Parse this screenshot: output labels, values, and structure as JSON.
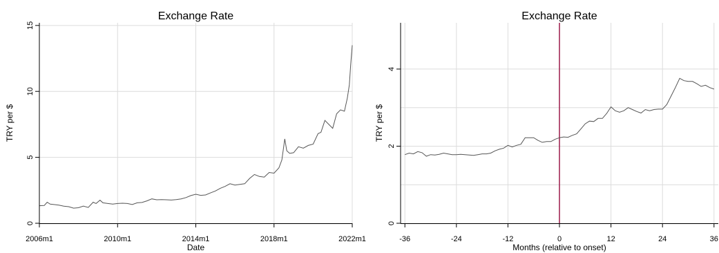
{
  "chart_data": [
    {
      "type": "line",
      "title": "Exchange Rate",
      "xlabel": "Date",
      "ylabel": "TRY per $",
      "xlim": [
        2006.0,
        2022.0
      ],
      "ylim": [
        0,
        15.2
      ],
      "x_ticks": [
        2006,
        2010,
        2014,
        2018,
        2022
      ],
      "x_tick_labels": [
        "2006m1",
        "2010m1",
        "2014m1",
        "2018m1",
        "2022m1"
      ],
      "y_ticks": [
        0,
        5,
        10,
        15
      ],
      "y_tick_labels": [
        "0",
        "5",
        "10",
        "15"
      ],
      "grid": true,
      "line_color": "#555555",
      "series": [
        {
          "x": [
            2006.0,
            2006.25,
            2006.4,
            2006.55,
            2006.75,
            2007.0,
            2007.25,
            2007.5,
            2007.75,
            2008.0,
            2008.25,
            2008.5,
            2008.75,
            2008.9,
            2009.1,
            2009.25,
            2009.5,
            2009.75,
            2010.0,
            2010.25,
            2010.5,
            2010.75,
            2011.0,
            2011.25,
            2011.5,
            2011.75,
            2012.0,
            2012.25,
            2012.5,
            2012.75,
            2013.0,
            2013.25,
            2013.5,
            2013.75,
            2014.0,
            2014.25,
            2014.5,
            2014.75,
            2015.0,
            2015.25,
            2015.5,
            2015.75,
            2016.0,
            2016.25,
            2016.5,
            2016.75,
            2017.0,
            2017.25,
            2017.5,
            2017.75,
            2018.0,
            2018.25,
            2018.4,
            2018.55,
            2018.65,
            2018.8,
            2019.0,
            2019.25,
            2019.5,
            2019.75,
            2020.0,
            2020.25,
            2020.4,
            2020.6,
            2020.8,
            2021.0,
            2021.2,
            2021.4,
            2021.6,
            2021.75,
            2021.85,
            2021.92,
            2022.0
          ],
          "y": [
            1.33,
            1.35,
            1.6,
            1.45,
            1.42,
            1.38,
            1.3,
            1.26,
            1.15,
            1.18,
            1.3,
            1.2,
            1.6,
            1.5,
            1.75,
            1.55,
            1.5,
            1.45,
            1.5,
            1.52,
            1.5,
            1.42,
            1.55,
            1.58,
            1.7,
            1.85,
            1.78,
            1.8,
            1.78,
            1.76,
            1.8,
            1.85,
            1.95,
            2.1,
            2.2,
            2.12,
            2.15,
            2.3,
            2.45,
            2.65,
            2.8,
            3.0,
            2.9,
            2.95,
            3.0,
            3.4,
            3.7,
            3.55,
            3.5,
            3.85,
            3.8,
            4.2,
            4.8,
            6.4,
            5.5,
            5.3,
            5.35,
            5.8,
            5.7,
            5.9,
            6.0,
            6.8,
            6.9,
            7.8,
            7.5,
            7.2,
            8.3,
            8.6,
            8.5,
            9.5,
            10.5,
            12.0,
            13.5
          ]
        }
      ]
    },
    {
      "type": "line",
      "title": "Exchange Rate",
      "xlabel": "Months (relative to onset)",
      "ylabel": "TRY per $",
      "xlim": [
        -37,
        37
      ],
      "ylim": [
        0,
        5.2
      ],
      "x_ticks": [
        -36,
        -24,
        -12,
        0,
        12,
        24,
        36
      ],
      "x_tick_labels": [
        "-36",
        "-24",
        "-12",
        "0",
        "12",
        "24",
        "36"
      ],
      "y_ticks": [
        0,
        2,
        4
      ],
      "y_tick_labels": [
        "0",
        "2",
        "4"
      ],
      "y_grid_ticks": [
        0,
        1,
        2,
        3,
        4
      ],
      "grid": true,
      "line_color": "#555555",
      "vline": {
        "x": 0,
        "color": "#9b1a4a"
      },
      "series": [
        {
          "x": [
            -36,
            -35,
            -34,
            -33,
            -32,
            -31,
            -30,
            -29,
            -28,
            -27,
            -26,
            -25,
            -24,
            -23,
            -22,
            -21,
            -20,
            -19,
            -18,
            -17,
            -16,
            -15,
            -14,
            -13,
            -12,
            -11,
            -10,
            -9,
            -8,
            -7,
            -6,
            -5,
            -4,
            -3,
            -2,
            -1,
            0,
            1,
            2,
            3,
            4,
            5,
            6,
            7,
            8,
            9,
            10,
            11,
            12,
            13,
            14,
            15,
            16,
            17,
            18,
            19,
            20,
            21,
            22,
            23,
            24,
            25,
            26,
            27,
            28,
            29,
            30,
            31,
            32,
            33,
            34,
            35,
            36
          ],
          "y": [
            1.78,
            1.82,
            1.8,
            1.86,
            1.83,
            1.74,
            1.78,
            1.77,
            1.79,
            1.82,
            1.8,
            1.78,
            1.78,
            1.79,
            1.78,
            1.77,
            1.76,
            1.78,
            1.8,
            1.8,
            1.82,
            1.88,
            1.92,
            1.95,
            2.02,
            1.98,
            2.02,
            2.05,
            2.22,
            2.22,
            2.22,
            2.15,
            2.1,
            2.12,
            2.12,
            2.18,
            2.22,
            2.24,
            2.23,
            2.28,
            2.32,
            2.45,
            2.58,
            2.65,
            2.64,
            2.72,
            2.72,
            2.85,
            3.02,
            2.92,
            2.88,
            2.92,
            3.0,
            2.95,
            2.9,
            2.86,
            2.95,
            2.92,
            2.95,
            2.96,
            2.96,
            3.08,
            3.3,
            3.52,
            3.76,
            3.7,
            3.68,
            3.68,
            3.62,
            3.55,
            3.58,
            3.52,
            3.48
          ]
        }
      ]
    }
  ]
}
